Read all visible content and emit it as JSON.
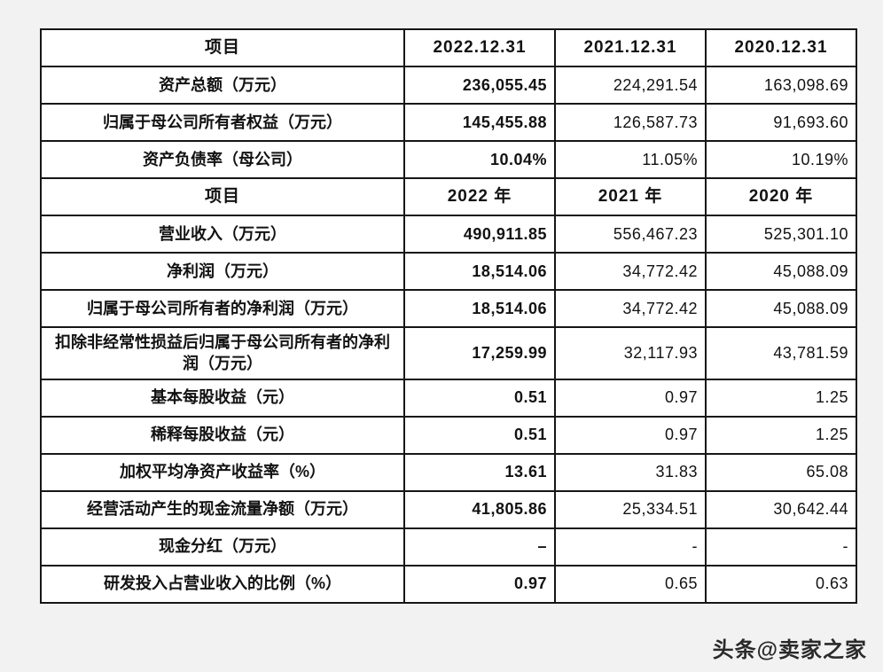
{
  "page": {
    "background": "#f2f2f2",
    "watermark": "头条@卖家之家",
    "border_color": "#161616"
  },
  "table": {
    "sections": [
      {
        "header": {
          "label": "项目",
          "cols": [
            "2022.12.31",
            "2021.12.31",
            "2020.12.31"
          ]
        },
        "rows": [
          {
            "label": "资产总额（万元）",
            "values": [
              "236,055.45",
              "224,291.54",
              "163,098.69"
            ]
          },
          {
            "label": "归属于母公司所有者权益（万元）",
            "values": [
              "145,455.88",
              "126,587.73",
              "91,693.60"
            ]
          },
          {
            "label": "资产负债率（母公司）",
            "values": [
              "10.04%",
              "11.05%",
              "10.19%"
            ]
          }
        ]
      },
      {
        "header": {
          "label": "项目",
          "cols": [
            "2022 年",
            "2021 年",
            "2020 年"
          ]
        },
        "rows": [
          {
            "label": "营业收入（万元）",
            "values": [
              "490,911.85",
              "556,467.23",
              "525,301.10"
            ]
          },
          {
            "label": "净利润（万元）",
            "values": [
              "18,514.06",
              "34,772.42",
              "45,088.09"
            ]
          },
          {
            "label": "归属于母公司所有者的净利润（万元）",
            "values": [
              "18,514.06",
              "34,772.42",
              "45,088.09"
            ]
          },
          {
            "label": "扣除非经常性损益后归属于母公司所有者的净利润（万元）",
            "values": [
              "17,259.99",
              "32,117.93",
              "43,781.59"
            ]
          },
          {
            "label": "基本每股收益（元）",
            "values": [
              "0.51",
              "0.97",
              "1.25"
            ]
          },
          {
            "label": "稀释每股收益（元）",
            "values": [
              "0.51",
              "0.97",
              "1.25"
            ]
          },
          {
            "label": "加权平均净资产收益率（%）",
            "values": [
              "13.61",
              "31.83",
              "65.08"
            ]
          },
          {
            "label": "经营活动产生的现金流量净额（万元）",
            "values": [
              "41,805.86",
              "25,334.51",
              "30,642.44"
            ]
          },
          {
            "label": "现金分红（万元）",
            "values": [
              "–",
              "-",
              "-"
            ]
          },
          {
            "label": "研发投入占营业收入的比例（%）",
            "values": [
              "0.97",
              "0.65",
              "0.63"
            ]
          }
        ]
      }
    ]
  }
}
